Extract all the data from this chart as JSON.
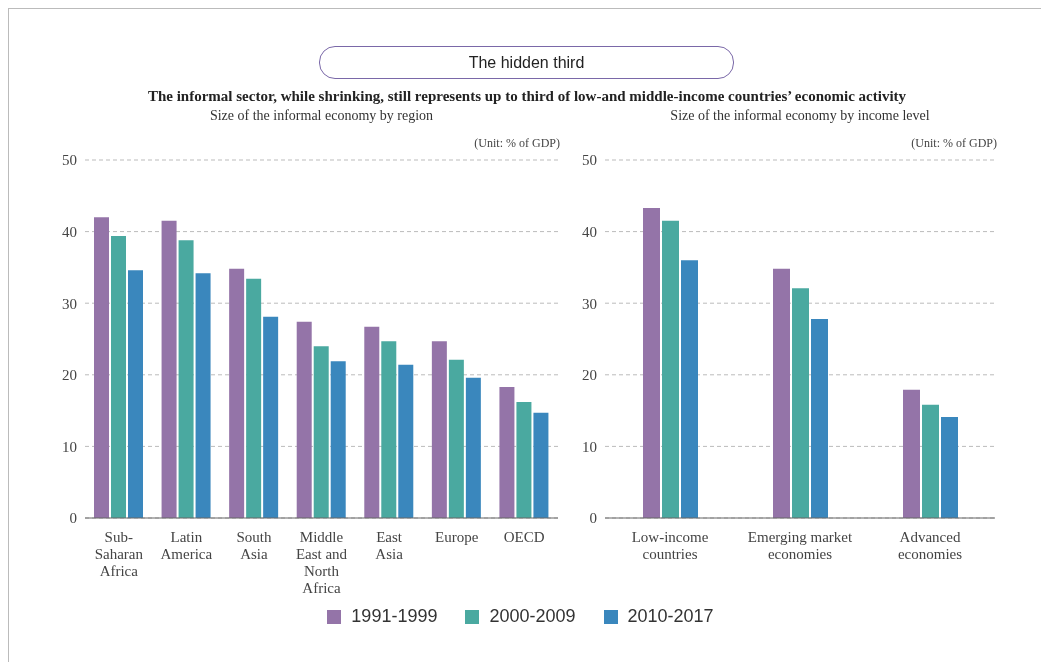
{
  "chart_data": [
    {
      "type": "bar",
      "title": "Size of the informal economy by region",
      "annotations": [
        "The hidden third",
        "The informal sector, while shrinking, still represents up to third of low-and middle-income countries’ economic activity",
        "(Unit: % of GDP)"
      ],
      "categories": [
        "Sub-Saharan Africa",
        "Latin America",
        "South Asia",
        "Middle East and North Africa",
        "East Asia",
        "Europe",
        "OECD"
      ],
      "series": [
        {
          "name": "1991-1999",
          "color": "#9474a8",
          "values": [
            42.0,
            41.5,
            34.8,
            27.4,
            26.7,
            24.7,
            18.3
          ]
        },
        {
          "name": "2000-2009",
          "color": "#4aa9a0",
          "values": [
            39.4,
            38.8,
            33.4,
            24.0,
            24.7,
            22.1,
            16.2
          ]
        },
        {
          "name": "2010-2017",
          "color": "#3a87bd",
          "values": [
            34.6,
            34.2,
            28.1,
            21.9,
            21.4,
            19.6,
            14.7
          ]
        }
      ],
      "ylim": [
        0,
        50
      ],
      "yticks": [
        0,
        10,
        20,
        30,
        40,
        50
      ],
      "grid": "y",
      "legend": "bottom"
    },
    {
      "type": "bar",
      "title": "Size of the informal economy by income level",
      "annotations": [
        "(Unit: % of GDP)"
      ],
      "categories": [
        "Low-income countries",
        "Emerging market economies",
        "Advanced economies"
      ],
      "series": [
        {
          "color": "#9474a8",
          "values": [
            43.3,
            34.8,
            17.9
          ]
        },
        {
          "color": "#4aa9a0",
          "values": [
            41.5,
            32.1,
            15.8
          ]
        },
        {
          "color": "#3a87bd",
          "values": [
            36.0,
            27.8,
            14.1
          ]
        }
      ],
      "ylim": [
        0,
        50
      ],
      "yticks": [
        0,
        10,
        20,
        30,
        40,
        50
      ],
      "grid": "y"
    }
  ]
}
